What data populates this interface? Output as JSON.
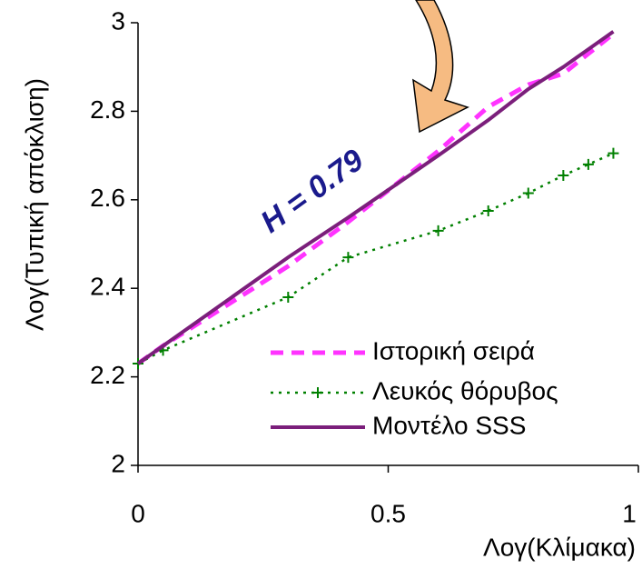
{
  "chart_data": {
    "type": "line",
    "xlabel": "Λογ(Κλίμακα)",
    "ylabel": "Λογ(Τυπική απόκλιση)",
    "annotation": "H = 0.79",
    "x": [
      0,
      0.05,
      0.3,
      0.42,
      0.6,
      0.7,
      0.78,
      0.85,
      0.9,
      0.95
    ],
    "series": [
      {
        "name": "Ιστορική σειρά",
        "color": "#ff33ff",
        "dash": "14 9",
        "marker": "none",
        "values": [
          2.23,
          2.27,
          2.45,
          2.55,
          2.71,
          2.81,
          2.86,
          2.885,
          2.93,
          2.975
        ]
      },
      {
        "name": "Λευκός θόρυβος",
        "color": "#008000",
        "dash": "3 6",
        "marker": "plus",
        "values": [
          2.23,
          2.26,
          2.38,
          2.47,
          2.53,
          2.575,
          2.615,
          2.655,
          2.68,
          2.705
        ]
      },
      {
        "name": "Μοντέλο SSS",
        "color": "#7b1f7b",
        "dash": "none",
        "marker": "none",
        "values": [
          2.23,
          2.27,
          2.47,
          2.56,
          2.7,
          2.78,
          2.85,
          2.9,
          2.94,
          2.98
        ]
      }
    ],
    "xlim": [
      0,
      1
    ],
    "xticks": [
      0,
      0.5,
      1
    ],
    "ylim": [
      2,
      3
    ],
    "yticks": [
      2,
      2.2,
      2.4,
      2.6,
      2.8,
      3
    ],
    "grid": false,
    "legend": "lower right"
  }
}
